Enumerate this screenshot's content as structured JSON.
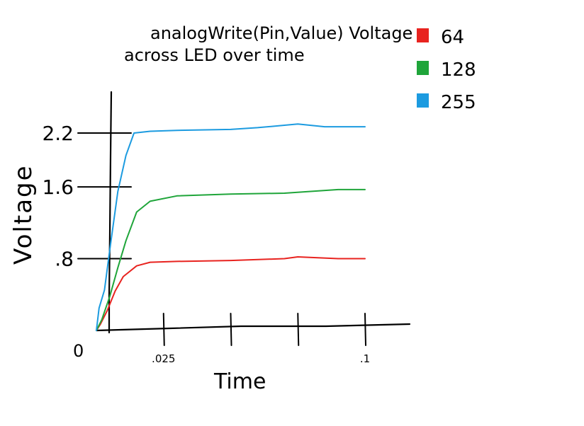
{
  "chart_data": {
    "type": "line",
    "title_line1": "analogWrite(Pin,Value) Voltage",
    "title_line2": "across LED over time",
    "xlabel": "Time",
    "ylabel": "Voltage",
    "origin_label": "0",
    "x_ticks": [
      {
        "value": 0.025,
        "label": ".025"
      },
      {
        "value": 0.05,
        "label": ""
      },
      {
        "value": 0.075,
        "label": ""
      },
      {
        "value": 0.1,
        "label": ".1"
      }
    ],
    "y_ticks": [
      {
        "value": 0.8,
        "label": ".8"
      },
      {
        "value": 1.6,
        "label": "1.6"
      },
      {
        "value": 2.2,
        "label": "2.2"
      }
    ],
    "xlim": [
      0,
      0.1
    ],
    "ylim": [
      0,
      2.2
    ],
    "grid": false,
    "legend_position": "top-right",
    "series": [
      {
        "name": "64",
        "color": "#e8231f",
        "x": [
          0,
          0.0015,
          0.004,
          0.007,
          0.01,
          0.015,
          0.02,
          0.03,
          0.05,
          0.07,
          0.075,
          0.09,
          0.1
        ],
        "y": [
          0,
          0.07,
          0.22,
          0.44,
          0.6,
          0.72,
          0.76,
          0.77,
          0.78,
          0.8,
          0.82,
          0.8,
          0.8
        ]
      },
      {
        "name": "128",
        "color": "#1fa53a",
        "x": [
          0,
          0.002,
          0.005,
          0.008,
          0.011,
          0.015,
          0.02,
          0.03,
          0.05,
          0.07,
          0.09,
          0.1
        ],
        "y": [
          0,
          0.12,
          0.38,
          0.7,
          1.0,
          1.32,
          1.44,
          1.5,
          1.52,
          1.53,
          1.57,
          1.57
        ]
      },
      {
        "name": "255",
        "color": "#1c9be0",
        "x": [
          0,
          0.001,
          0.003,
          0.005,
          0.008,
          0.011,
          0.014,
          0.02,
          0.03,
          0.05,
          0.06,
          0.075,
          0.085,
          0.1
        ],
        "y": [
          0,
          0.25,
          0.45,
          0.9,
          1.55,
          1.95,
          2.2,
          2.22,
          2.23,
          2.24,
          2.26,
          2.3,
          2.27,
          2.27
        ]
      }
    ]
  }
}
